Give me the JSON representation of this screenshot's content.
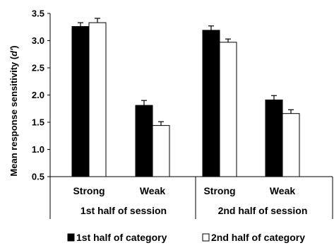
{
  "chart_data": {
    "type": "bar",
    "ylabel_main": "Mean response sensitivity (",
    "ylabel_symbol": "d'",
    "ylabel_end": ")",
    "ylim": [
      0.5,
      3.5
    ],
    "yticks": [
      "0.5",
      "1.0",
      "1.5",
      "2.0",
      "2.5",
      "3.0",
      "3.5"
    ],
    "ytick_values": [
      0.5,
      1.0,
      1.5,
      2.0,
      2.5,
      3.0,
      3.5
    ],
    "categories": [
      "Strong",
      "Weak",
      "Strong",
      "Weak"
    ],
    "groups": [
      "1st half of session",
      "2nd half of session"
    ],
    "series": [
      {
        "name": "1st half of category",
        "color": "#000000",
        "values": [
          3.26,
          1.81,
          3.19,
          1.91
        ],
        "errors": [
          0.07,
          0.09,
          0.08,
          0.08
        ]
      },
      {
        "name": "2nd half of category",
        "color": "#ffffff",
        "values": [
          3.33,
          1.44,
          2.97,
          1.66
        ],
        "errors": [
          0.08,
          0.07,
          0.06,
          0.07
        ]
      }
    ],
    "legend_position": "bottom",
    "grid": false
  }
}
